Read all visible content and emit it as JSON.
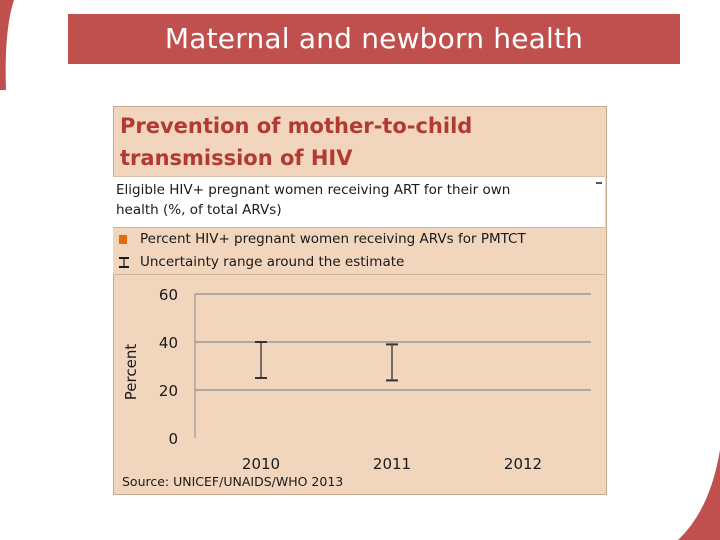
{
  "slide": {
    "title": "Maternal and newborn health",
    "accent_color": "#c0504d",
    "panel_color": "#f1d5bd"
  },
  "chart_data": {
    "type": "bar",
    "title": "Prevention of mother-to-child transmission of HIV",
    "subtitle": "Eligible HIV+ pregnant women receiving ART for their own health (%, of total ARVs)",
    "categories": [
      "2010",
      "2011",
      "2012"
    ],
    "series": [
      {
        "name": "Percent HIV+ pregnant women receiving ARVs for PMTCT",
        "color": "#e36c0a",
        "values": [
          null,
          null,
          null
        ]
      }
    ],
    "uncertainty": {
      "name": "Uncertainty range around the estimate",
      "ranges": [
        [
          25,
          40
        ],
        [
          24,
          39
        ],
        null
      ]
    },
    "ylabel": "Percent",
    "xlabel": "",
    "yticks": [
      0,
      20,
      40,
      60
    ],
    "ylim": [
      0,
      60
    ],
    "grid": true,
    "legend_position": "top",
    "source": "Source: UNICEF/UNAIDS/WHO 2013"
  }
}
